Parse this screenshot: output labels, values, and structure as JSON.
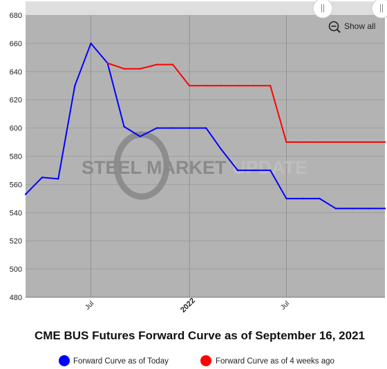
{
  "chart_data": {
    "type": "line",
    "title": "CME BUS Futures Forward Curve as of September 16, 2021",
    "xlabel": "",
    "ylabel": "",
    "ylim": [
      480,
      680
    ],
    "yticks": [
      480,
      500,
      520,
      540,
      560,
      580,
      600,
      620,
      640,
      660,
      680
    ],
    "xlim": [
      "2021-03-01",
      "2023-01-01"
    ],
    "xticks": [
      {
        "date": "2021-07-01",
        "label": "Jul",
        "bold": false
      },
      {
        "date": "2022-01-01",
        "label": "2022",
        "bold": true
      },
      {
        "date": "2022-07-01",
        "label": "Jul",
        "bold": false
      }
    ],
    "grid": true,
    "legend_position": "bottom",
    "series": [
      {
        "name": "Forward Curve as of Today",
        "color": "#0000ff",
        "points": [
          {
            "x": "2021-03-01",
            "y": 553
          },
          {
            "x": "2021-04-01",
            "y": 565
          },
          {
            "x": "2021-05-01",
            "y": 564
          },
          {
            "x": "2021-06-01",
            "y": 630
          },
          {
            "x": "2021-07-01",
            "y": 660
          },
          {
            "x": "2021-08-01",
            "y": 646
          },
          {
            "x": "2021-09-01",
            "y": 601
          },
          {
            "x": "2021-10-01",
            "y": 594
          },
          {
            "x": "2021-11-01",
            "y": 600
          },
          {
            "x": "2021-12-01",
            "y": 600
          },
          {
            "x": "2022-01-01",
            "y": 600
          },
          {
            "x": "2022-02-01",
            "y": 600
          },
          {
            "x": "2022-03-01",
            "y": 585
          },
          {
            "x": "2022-04-01",
            "y": 570
          },
          {
            "x": "2022-05-01",
            "y": 570
          },
          {
            "x": "2022-06-01",
            "y": 570
          },
          {
            "x": "2022-07-01",
            "y": 550
          },
          {
            "x": "2022-08-01",
            "y": 550
          },
          {
            "x": "2022-09-01",
            "y": 550
          },
          {
            "x": "2022-10-01",
            "y": 543
          },
          {
            "x": "2022-11-01",
            "y": 543
          },
          {
            "x": "2022-12-01",
            "y": 543
          },
          {
            "x": "2023-01-01",
            "y": 543
          }
        ]
      },
      {
        "name": "Forward Curve as of 4 weeks ago",
        "color": "#ff0000",
        "points": [
          {
            "x": "2021-08-01",
            "y": 646
          },
          {
            "x": "2021-09-01",
            "y": 642
          },
          {
            "x": "2021-10-01",
            "y": 642
          },
          {
            "x": "2021-11-01",
            "y": 645
          },
          {
            "x": "2021-12-01",
            "y": 645
          },
          {
            "x": "2022-01-01",
            "y": 630
          },
          {
            "x": "2022-02-01",
            "y": 630
          },
          {
            "x": "2022-03-01",
            "y": 630
          },
          {
            "x": "2022-04-01",
            "y": 630
          },
          {
            "x": "2022-05-01",
            "y": 630
          },
          {
            "x": "2022-06-01",
            "y": 630
          },
          {
            "x": "2022-07-01",
            "y": 590
          },
          {
            "x": "2022-08-01",
            "y": 590
          },
          {
            "x": "2022-09-01",
            "y": 590
          },
          {
            "x": "2022-10-01",
            "y": 590
          },
          {
            "x": "2022-11-01",
            "y": 590
          },
          {
            "x": "2022-12-01",
            "y": 590
          },
          {
            "x": "2023-01-01",
            "y": 590
          }
        ]
      }
    ]
  },
  "watermark": {
    "part1": "STEEL MARKET",
    "part2": "UPDATE"
  },
  "zoom": {
    "show_all_label": "Show all",
    "icon": "zoom-out-icon"
  },
  "navigator": {
    "handle_icon": "grip-lines-icon"
  },
  "colors": {
    "plot_bg": "#b3b3b3",
    "navigator_bg": "#dedede"
  }
}
